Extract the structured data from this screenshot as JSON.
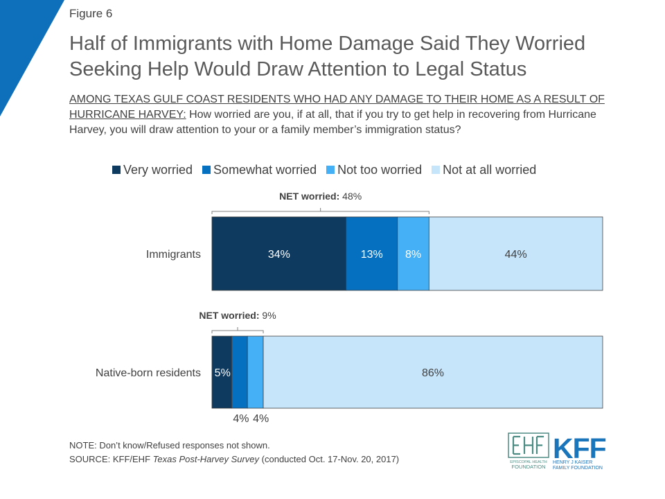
{
  "figure_label": "Figure 6",
  "title_lines": [
    "Half of Immigrants with Home Damage Said They Worried",
    "Seeking Help Would Draw Attention to Legal Status"
  ],
  "question": {
    "underlined": "AMONG TEXAS GULF COAST RESIDENTS WHO HAD ANY DAMAGE TO THEIR HOME AS A RESULT OF HURRICANE HARVEY:",
    "text": " How worried are you, if at all, that if you try to get help in recovering from Hurricane Harvey, you will draw attention to your or a family member’s immigration status?"
  },
  "colors": {
    "very_worried": "#0f3a5f",
    "somewhat_worried": "#0670c0",
    "not_too_worried": "#45b0f5",
    "not_at_all_worried": "#c6e5fa",
    "corner": "#0e6fba",
    "kff_blue": "#1b75bb",
    "ehf_green": "#4c8c82"
  },
  "chart_data": {
    "type": "bar",
    "orientation": "horizontal",
    "stacked": true,
    "categories": [
      "Immigrants",
      "Native-born residents"
    ],
    "series": [
      {
        "name": "Very worried",
        "values": [
          34,
          5
        ],
        "labels": [
          "34%",
          "5%"
        ]
      },
      {
        "name": "Somewhat worried",
        "values": [
          13,
          4
        ],
        "labels": [
          "13%",
          "4%"
        ]
      },
      {
        "name": "Not too worried",
        "values": [
          8,
          4
        ],
        "labels": [
          "8%",
          "4%"
        ]
      },
      {
        "name": "Not at all worried",
        "values": [
          44,
          86
        ],
        "labels": [
          "44%",
          "86%"
        ]
      }
    ],
    "net_annotations": [
      {
        "label_bold": "NET worried:",
        "label_value": "48%"
      },
      {
        "label_bold": "NET worried:",
        "label_value": "9%"
      }
    ],
    "xlim": [
      0,
      99
    ],
    "legend_position": "top"
  },
  "footer": {
    "note": "NOTE: Don’t know/Refused responses not shown.",
    "source_prefix": "SOURCE: KFF/EHF ",
    "source_title": "Texas Post-Harvey Survey",
    "source_suffix": " (conducted Oct. 17-Nov. 20, 2017)"
  },
  "logos": {
    "ehf_line1": "EPISCOPAL HEALTH",
    "ehf_line2": "FOUNDATION",
    "kff_mark": "KFF",
    "kff_line1": "HENRY J KAISER",
    "kff_line2": "FAMILY FOUNDATION"
  }
}
